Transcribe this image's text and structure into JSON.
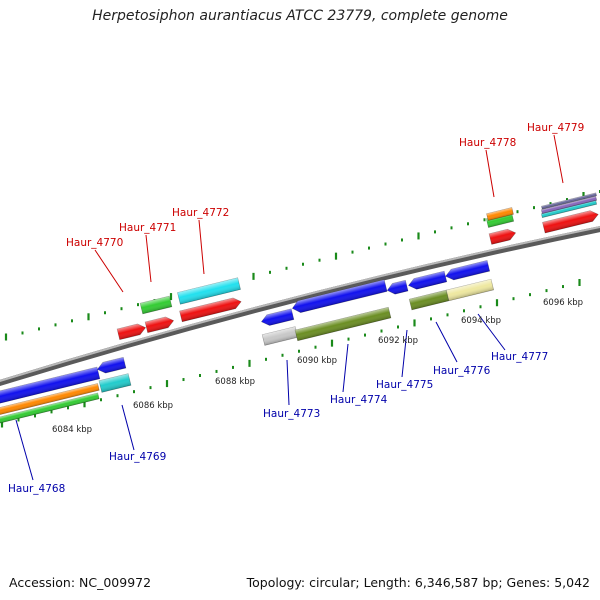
{
  "header": {
    "title": "Herpetosiphon aurantiacus ATCC 23779, complete genome"
  },
  "footer": {
    "accession": "Accession: NC_009972",
    "summary": "Topology: circular; Length: 6,346,587 bp; Genes: 5,042"
  },
  "colors": {
    "forward_label": "#cc0000",
    "reverse_label": "#0000aa",
    "tick": "#1a8a1a",
    "backbone": "#888888"
  },
  "axis": {
    "scale_labels": [
      "6084 kbp",
      "6086 kbp",
      "6088 kbp",
      "6090 kbp",
      "6092 kbp",
      "6094 kbp",
      "6096 kbp"
    ]
  },
  "genes": {
    "forward": [
      "Haur_4770",
      "Haur_4771",
      "Haur_4772",
      "Haur_4778",
      "Haur_4779"
    ],
    "reverse": [
      "Haur_4768",
      "Haur_4769",
      "Haur_4773",
      "Haur_4774",
      "Haur_4775",
      "Haur_4776",
      "Haur_4777"
    ]
  }
}
